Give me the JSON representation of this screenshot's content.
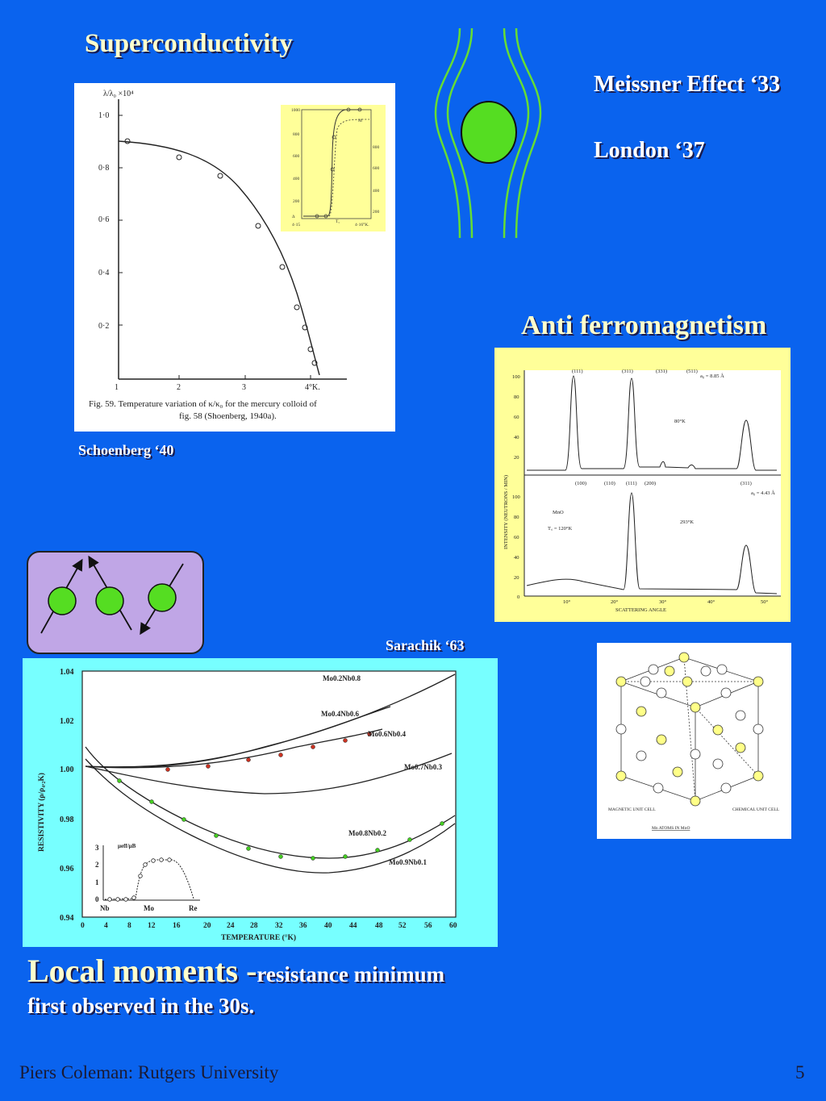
{
  "slide": {
    "title": "Superconductivity",
    "meissner": "Meissner Effect ‘33",
    "london": "London ‘37",
    "antiferro_title": "Anti ferromagnetism",
    "schoenberg_caption": "Schoenberg ‘40",
    "sarachik_caption": "Sarachik ‘63",
    "local_moments_big": "Local moments -",
    "local_moments_small": "resistance minimum",
    "local_moments_line2": "first observed in the 30s.",
    "footer_author": "Piers Coleman: Rutgers University",
    "page_number": "5"
  },
  "colors": {
    "background": "#0a63ee",
    "title_text": "#ffffcc",
    "sphere_green": "#55dd22",
    "field_lines": "#66dd33",
    "spin_box": "#c0a6e6",
    "resistivity_bg": "#77ffff",
    "yellow_fig_bg": "#ffff99"
  },
  "figures": {
    "schoenberg": {
      "ylabel": "λ/λ₀ ×10⁴",
      "yticks": [
        "1·0",
        "0·8",
        "0·6",
        "0·4",
        "0·2"
      ],
      "xticks": [
        "1",
        "2",
        "3",
        "4°K."
      ],
      "caption_line1": "Fig. 59.  Temperature variation of κ/κ₀ for the mercury colloid of",
      "caption_line2": "fig. 58 (Shoenberg, 1940a).",
      "inset_yticks": [
        "1000",
        "800",
        "600",
        "400",
        "200"
      ],
      "inset_rticks": [
        "800",
        "600",
        "400",
        "200"
      ],
      "inset_xlabels": [
        "4·15",
        "4·16°K."
      ],
      "inset_curve_label": "M",
      "inset_bottom_label": "Δ",
      "inset_tc_label": "T꜀"
    },
    "neutron": {
      "top_peaks": [
        "(111)",
        "(311)",
        "(331)",
        "(511)"
      ],
      "top_a0": "a₀ = 8.85 Å",
      "top_temp": "80°K",
      "top_yticks": [
        "100",
        "80",
        "60",
        "40",
        "20"
      ],
      "bottom_peaks": [
        "(100)",
        "(110)",
        "(111)",
        "(200)",
        "(311)"
      ],
      "bottom_a0": "a₀ = 4.43 Å",
      "bottom_temp": "293°K",
      "bottom_yticks": [
        "100",
        "80",
        "60",
        "40",
        "20",
        "0"
      ],
      "sample": "MnO",
      "tc": "T꜀ = 120°K",
      "ylabel": "INTENSITY  (NEUTRONS / MIN)",
      "xticks": [
        "10°",
        "20°",
        "30°",
        "40°",
        "50°"
      ],
      "xlabel": "SCATTERING  ANGLE"
    },
    "mno_cell": {
      "label_left": "MAGNETIC UNIT CELL",
      "label_right": "CHEMICAL UNIT CELL",
      "label_bottom": "Mn ATOMS IN MnO"
    },
    "resistivity": {
      "yticks": [
        "1.04",
        "1.02",
        "1.00",
        "0.98",
        "0.96",
        "0.94"
      ],
      "xticks": [
        "0",
        "4",
        "8",
        "12",
        "16",
        "20",
        "24",
        "28",
        "32",
        "36",
        "40",
        "44",
        "48",
        "52",
        "56",
        "60"
      ],
      "ylabel": "RESISTIVITY  (ρ/ρ₄.₂K)",
      "xlabel": "TEMPERATURE  (°K)",
      "series_labels": [
        "Mo0.2Nb0.8",
        "Mo0.4Nb0.6",
        "Mo0.6Nb0.4",
        "Mo0.7Nb0.3",
        "Mo0.8Nb0.2",
        "Mo0.9Nb0.1"
      ],
      "inset_label": "μeff/μB",
      "inset_yticks": [
        "3",
        "2",
        "1",
        "0"
      ],
      "inset_xlabels": [
        "Nb",
        "Mo",
        "Re"
      ]
    }
  }
}
